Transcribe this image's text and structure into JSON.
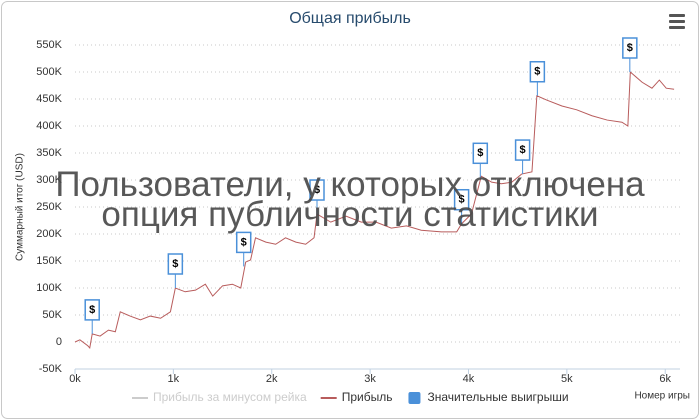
{
  "chart_data": {
    "type": "line",
    "title": "Общая прибыль",
    "x_label": "Номер игры",
    "y_label": "Суммарный итог (USD)",
    "overlay": "Пользователи, у которых отключена опция публичности статистики",
    "xlim": [
      0,
      6150
    ],
    "ylim": [
      -50000,
      550000
    ],
    "grid": true,
    "xticks": [
      {
        "value": 0,
        "label": "0k"
      },
      {
        "value": 1000,
        "label": "1k"
      },
      {
        "value": 2000,
        "label": "2k"
      },
      {
        "value": 3000,
        "label": "3k"
      },
      {
        "value": 4000,
        "label": "4k"
      },
      {
        "value": 5000,
        "label": "5k"
      },
      {
        "value": 6000,
        "label": "6k"
      }
    ],
    "yticks": [
      {
        "value": -50000,
        "label": "-50K"
      },
      0,
      {
        "value": 50000,
        "label": "50K"
      },
      {
        "value": 100000,
        "label": "100K"
      },
      {
        "value": 150000,
        "label": "150K"
      },
      {
        "value": 200000,
        "label": "200K"
      },
      {
        "value": 250000,
        "label": "250K"
      },
      {
        "value": 300000,
        "label": "300K"
      },
      {
        "value": 350000,
        "label": "350K"
      },
      {
        "value": 400000,
        "label": "400K"
      },
      {
        "value": 450000,
        "label": "450K"
      },
      {
        "value": 500000,
        "label": "500K"
      },
      {
        "value": 550000,
        "label": "550K"
      }
    ],
    "series": [
      {
        "name": "Прибыль за минусом рейка",
        "color": "#cccccc",
        "visible": false
      },
      {
        "name": "Прибыль",
        "color": "#b85c5c",
        "visible": true,
        "x": [
          0,
          50,
          130,
          150,
          175,
          255,
          340,
          410,
          460,
          560,
          665,
          765,
          870,
          970,
          1020,
          1120,
          1225,
          1325,
          1400,
          1500,
          1600,
          1685,
          1735,
          1785,
          1835,
          1940,
          2040,
          2140,
          2245,
          2345,
          2430,
          2460,
          2600,
          2755,
          2910,
          3060,
          3215,
          3370,
          3520,
          3725,
          3880,
          3930,
          4030,
          4130,
          4235,
          4335,
          4440,
          4540,
          4645,
          4695,
          4795,
          4950,
          5100,
          5255,
          5410,
          5560,
          5620,
          5645,
          5765,
          5865,
          5940,
          6010,
          6090
        ],
        "values": [
          0,
          4000,
          -7000,
          -11000,
          15000,
          11000,
          22000,
          19000,
          56000,
          48000,
          41000,
          48000,
          44000,
          56000,
          100000,
          93000,
          96000,
          107000,
          85000,
          104000,
          107000,
          100000,
          148000,
          152000,
          193000,
          185000,
          181000,
          193000,
          185000,
          181000,
          193000,
          237000,
          222000,
          233000,
          222000,
          222000,
          211000,
          215000,
          207000,
          204000,
          204000,
          219000,
          237000,
          307000,
          296000,
          293000,
          296000,
          311000,
          315000,
          456000,
          448000,
          437000,
          430000,
          419000,
          411000,
          407000,
          400000,
          500000,
          481000,
          470000,
          485000,
          470000,
          468000
        ]
      },
      {
        "name": "Значительные выигрыши",
        "color": "#4a90d9",
        "visible": true,
        "flag_text": "$",
        "x": [
          175,
          1020,
          1715,
          2460,
          3930,
          4120,
          4550,
          4700,
          5640
        ],
        "values": [
          15000,
          100000,
          140000,
          237000,
          219000,
          305000,
          311000,
          456000,
          500000
        ]
      }
    ]
  }
}
